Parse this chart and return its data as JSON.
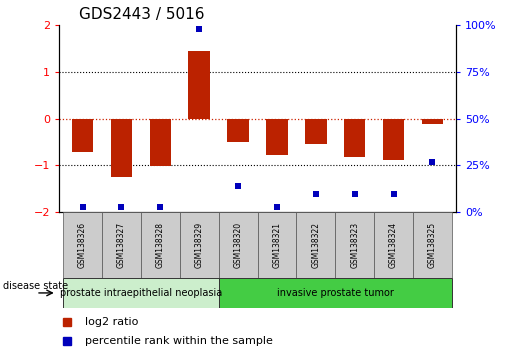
{
  "title": "GDS2443 / 5016",
  "samples": [
    "GSM138326",
    "GSM138327",
    "GSM138328",
    "GSM138329",
    "GSM138320",
    "GSM138321",
    "GSM138322",
    "GSM138323",
    "GSM138324",
    "GSM138325"
  ],
  "log2_ratio": [
    -0.72,
    -1.25,
    -1.02,
    1.45,
    -0.5,
    -0.78,
    -0.55,
    -0.82,
    -0.88,
    -0.12
  ],
  "percentile_rank": [
    3,
    3,
    3,
    98,
    14,
    3,
    10,
    10,
    10,
    27
  ],
  "group1_label": "prostate intraepithelial neoplasia",
  "group2_label": "invasive prostate tumor",
  "group1_count": 4,
  "group2_count": 6,
  "ylim_left": [
    -2,
    2
  ],
  "ylim_right": [
    0,
    100
  ],
  "y_ticks_left": [
    -2,
    -1,
    0,
    1,
    2
  ],
  "y_ticks_right": [
    0,
    25,
    50,
    75,
    100
  ],
  "bar_color": "#bb2200",
  "scatter_color": "#0000bb",
  "bar_width": 0.55,
  "legend_red_label": "log2 ratio",
  "legend_blue_label": "percentile rank within the sample",
  "disease_state_label": "disease state",
  "group1_bg": "#cceecc",
  "group2_bg": "#44cc44",
  "sample_box_bg": "#cccccc",
  "dotted_line_color": "#000000",
  "zero_line_color": "#cc2200",
  "title_fontsize": 11,
  "tick_fontsize": 8,
  "sample_fontsize": 5.5,
  "group_fontsize": 7,
  "legend_fontsize": 8
}
